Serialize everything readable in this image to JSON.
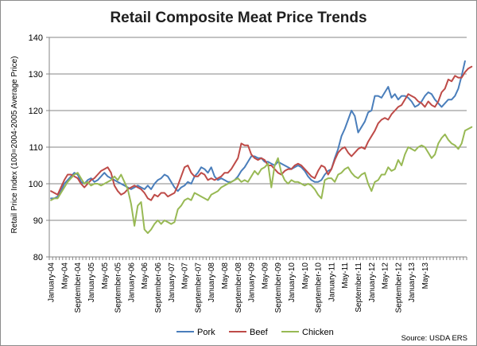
{
  "chart_data": {
    "type": "line",
    "title": "Retail Composite Meat Price Trends",
    "ylabel": "Retail Price Index (100=2004-2005 Average Price)",
    "xlabel": "",
    "ylim": [
      80,
      140
    ],
    "yticks": [
      80,
      90,
      100,
      110,
      120,
      130,
      140
    ],
    "y_gridlines": true,
    "x_tick_labels": [
      "January-04",
      "May-04",
      "September-04",
      "January-05",
      "May-05",
      "September-05",
      "January-06",
      "May-06",
      "September-06",
      "January-07",
      "May-07",
      "September-07",
      "January-08",
      "May-08",
      "September-08",
      "January-09",
      "May-09",
      "September-09",
      "January-10",
      "May-10",
      "September-10",
      "January-11",
      "May-11",
      "September-11",
      "January-12",
      "May-12",
      "September-12",
      "January-13",
      "May-13"
    ],
    "x_start": "January-04",
    "x_end": "August-13",
    "legend_position": "bottom",
    "source": "Source: USDA ERS",
    "series": [
      {
        "name": "Pork",
        "color": "#4a7ebb",
        "values": [
          96,
          96,
          96.5,
          98,
          100,
          101,
          102,
          103,
          102.5,
          100.5,
          100,
          101,
          101.5,
          100.5,
          101,
          102,
          103,
          102,
          101.5,
          101,
          100.5,
          100,
          99.5,
          99,
          98.5,
          99,
          99.5,
          99,
          98.5,
          99.5,
          98.5,
          100,
          101,
          101.5,
          102.5,
          102,
          100.5,
          99,
          98,
          99,
          99.5,
          100.5,
          100,
          102,
          103,
          104.5,
          104,
          103,
          104.5,
          102,
          101,
          101.5,
          101,
          100.5,
          100.5,
          101,
          102,
          103.5,
          104.5,
          106,
          107.5,
          107.5,
          107,
          107,
          106,
          106,
          105.5,
          105,
          106,
          105.5,
          105,
          104.5,
          104,
          104.5,
          105,
          104.5,
          103.5,
          102,
          101,
          100.5,
          100.5,
          101,
          102.5,
          103.5,
          104,
          107,
          109.5,
          113,
          115,
          117.5,
          120,
          118.5,
          114,
          115.5,
          117,
          119.5,
          120,
          124,
          124,
          123.5,
          125,
          126.5,
          123.5,
          124.5,
          123,
          124,
          124,
          123.5,
          122.5,
          121,
          121.5,
          122.5,
          124,
          125,
          124.5,
          123,
          122,
          121,
          122,
          123,
          123,
          124,
          126,
          129.5,
          133.5
        ]
      },
      {
        "name": "Beef",
        "color": "#be4b48",
        "values": [
          98,
          97.5,
          97,
          99,
          101,
          102.5,
          102.5,
          102,
          101.5,
          100,
          99,
          100,
          101,
          101.5,
          102.5,
          103.5,
          104,
          104.5,
          103,
          99.5,
          98,
          97,
          97.5,
          98.5,
          99,
          99.5,
          99,
          98.5,
          97.5,
          96,
          95.5,
          97,
          96.5,
          97.5,
          97.5,
          96.5,
          97,
          97.5,
          99.5,
          102,
          104.5,
          105,
          103,
          102,
          102,
          103,
          102.5,
          101,
          101.5,
          101,
          101.5,
          102,
          103,
          103,
          104,
          105.5,
          107,
          111,
          110.5,
          110.5,
          108,
          107,
          106.5,
          107,
          106.5,
          105,
          105,
          104,
          103,
          102.5,
          103.5,
          104,
          104,
          105,
          105.5,
          105,
          104,
          103,
          102,
          101.5,
          103.5,
          105,
          104.5,
          102.5,
          104,
          106.5,
          108.5,
          109.5,
          110,
          108.5,
          107.5,
          108.5,
          109.5,
          110,
          109.5,
          111.5,
          113,
          114.5,
          116.5,
          117.5,
          118,
          117.5,
          119,
          120,
          121,
          121.5,
          123,
          124.5,
          124,
          123.5,
          122.5,
          122,
          121,
          122.5,
          121.5,
          121,
          122.5,
          125,
          126,
          128.5,
          128,
          129.5,
          129,
          129,
          130.5,
          131.5,
          132
        ]
      },
      {
        "name": "Chicken",
        "color": "#98b954",
        "values": [
          95.5,
          96,
          96,
          97.5,
          99,
          100.5,
          101.5,
          102.5,
          103,
          101.5,
          100,
          100.5,
          99.5,
          100,
          100,
          99.5,
          100,
          100.5,
          101,
          102,
          101,
          102.5,
          100.5,
          98.5,
          94.5,
          88.5,
          94,
          95,
          87.5,
          86.5,
          87.5,
          89,
          90,
          89,
          90,
          89.5,
          89,
          89.5,
          93,
          94,
          95.5,
          96,
          95.5,
          97.5,
          97,
          96.5,
          96,
          95.5,
          97,
          97.5,
          98,
          99,
          99.5,
          100,
          100.5,
          101,
          101.5,
          100.5,
          101,
          100.5,
          102,
          103.5,
          102.5,
          104,
          104.5,
          105.5,
          99,
          105,
          107,
          103,
          101,
          100,
          101,
          100.5,
          100.5,
          100,
          99.5,
          100,
          99.5,
          98.5,
          97,
          96,
          101,
          101.5,
          101.5,
          100.5,
          102.5,
          103,
          104,
          104.5,
          103,
          102,
          101.5,
          102.5,
          103,
          100,
          98,
          100.5,
          101,
          102.5,
          102.5,
          104.5,
          103.5,
          104,
          106.5,
          105,
          108,
          110,
          109.5,
          109,
          110,
          110.5,
          110,
          108.5,
          107,
          108,
          111,
          112.5,
          113.5,
          112,
          111,
          110.5,
          109.5,
          111,
          114.5,
          115,
          115.5
        ]
      }
    ]
  }
}
